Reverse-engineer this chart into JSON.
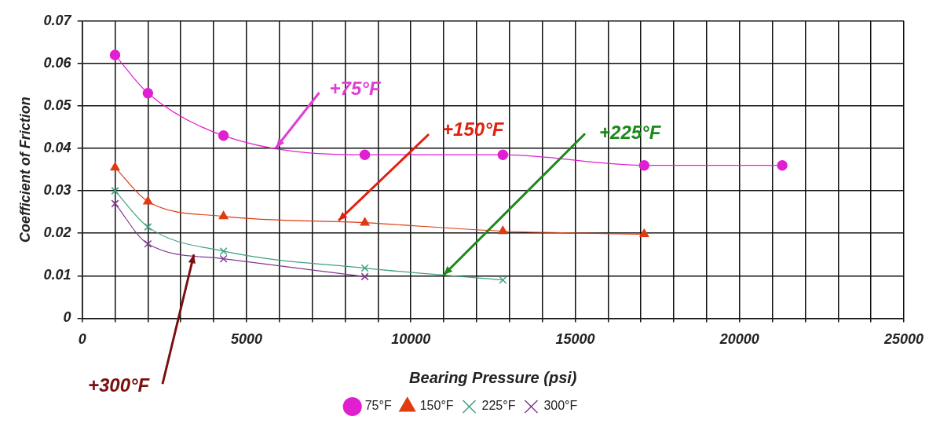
{
  "chart_data": {
    "type": "line",
    "xlabel": "Bearing Pressure (psi)",
    "ylabel": "Coefficient of Friction",
    "xlim": [
      0,
      25000
    ],
    "ylim": [
      0,
      0.07
    ],
    "xticks": [
      0,
      {
        "value": 1000,
        "label": null
      },
      {
        "value": 2000,
        "label": null
      },
      {
        "value": 3000,
        "label": null
      },
      {
        "value": 4000,
        "label": null
      },
      5000,
      {
        "value": 6000,
        "label": null
      },
      {
        "value": 7000,
        "label": null
      },
      {
        "value": 8000,
        "label": null
      },
      {
        "value": 9000,
        "label": null
      },
      10000,
      {
        "value": 11000,
        "label": null
      },
      {
        "value": 12000,
        "label": null
      },
      {
        "value": 13000,
        "label": null
      },
      {
        "value": 14000,
        "label": null
      },
      15000,
      {
        "value": 16000,
        "label": null
      },
      {
        "value": 17000,
        "label": null
      },
      {
        "value": 18000,
        "label": null
      },
      {
        "value": 19000,
        "label": null
      },
      20000,
      {
        "value": 21000,
        "label": null
      },
      {
        "value": 22000,
        "label": null
      },
      {
        "value": 23000,
        "label": null
      },
      {
        "value": 24000,
        "label": null
      },
      25000
    ],
    "yticks": [
      0,
      0.01,
      0.02,
      0.03,
      0.04,
      0.05,
      0.06,
      0.07
    ],
    "grid": true,
    "legend": "bottom",
    "series": [
      {
        "name": "75°F",
        "color": "#e020d0",
        "marker": "circle",
        "x": [
          1000,
          2000,
          4300,
          8600,
          12800,
          17100,
          21300
        ],
        "values": [
          0.062,
          0.053,
          0.043,
          0.0385,
          0.0385,
          0.036,
          0.036
        ]
      },
      {
        "name": "150°F",
        "color": "#e03a10",
        "marker": "triangle",
        "x": [
          1000,
          2000,
          4300,
          8600,
          12800,
          17100
        ],
        "values": [
          0.0355,
          0.0275,
          0.024,
          0.0225,
          0.0205,
          0.0198
        ]
      },
      {
        "name": "225°F",
        "color": "#40a080",
        "marker": "cross",
        "x": [
          1000,
          2000,
          4300,
          8600,
          12800
        ],
        "values": [
          0.03,
          0.0215,
          0.0158,
          0.0118,
          0.009
        ]
      },
      {
        "name": "300°F",
        "color": "#803a90",
        "marker": "cross",
        "x": [
          1000,
          2000,
          4300,
          8600
        ],
        "values": [
          0.027,
          0.0175,
          0.014,
          0.0098
        ]
      }
    ],
    "annotations": [
      {
        "text": "+75°F",
        "x": 5900,
        "y": 0.0402
      },
      {
        "text": "+150°F",
        "x": 7800,
        "y": 0.023
      },
      {
        "text": "+225°F",
        "x": 11000,
        "y": 0.0102
      },
      {
        "text": "+300°F",
        "x": 3400,
        "y": 0.015
      }
    ]
  }
}
